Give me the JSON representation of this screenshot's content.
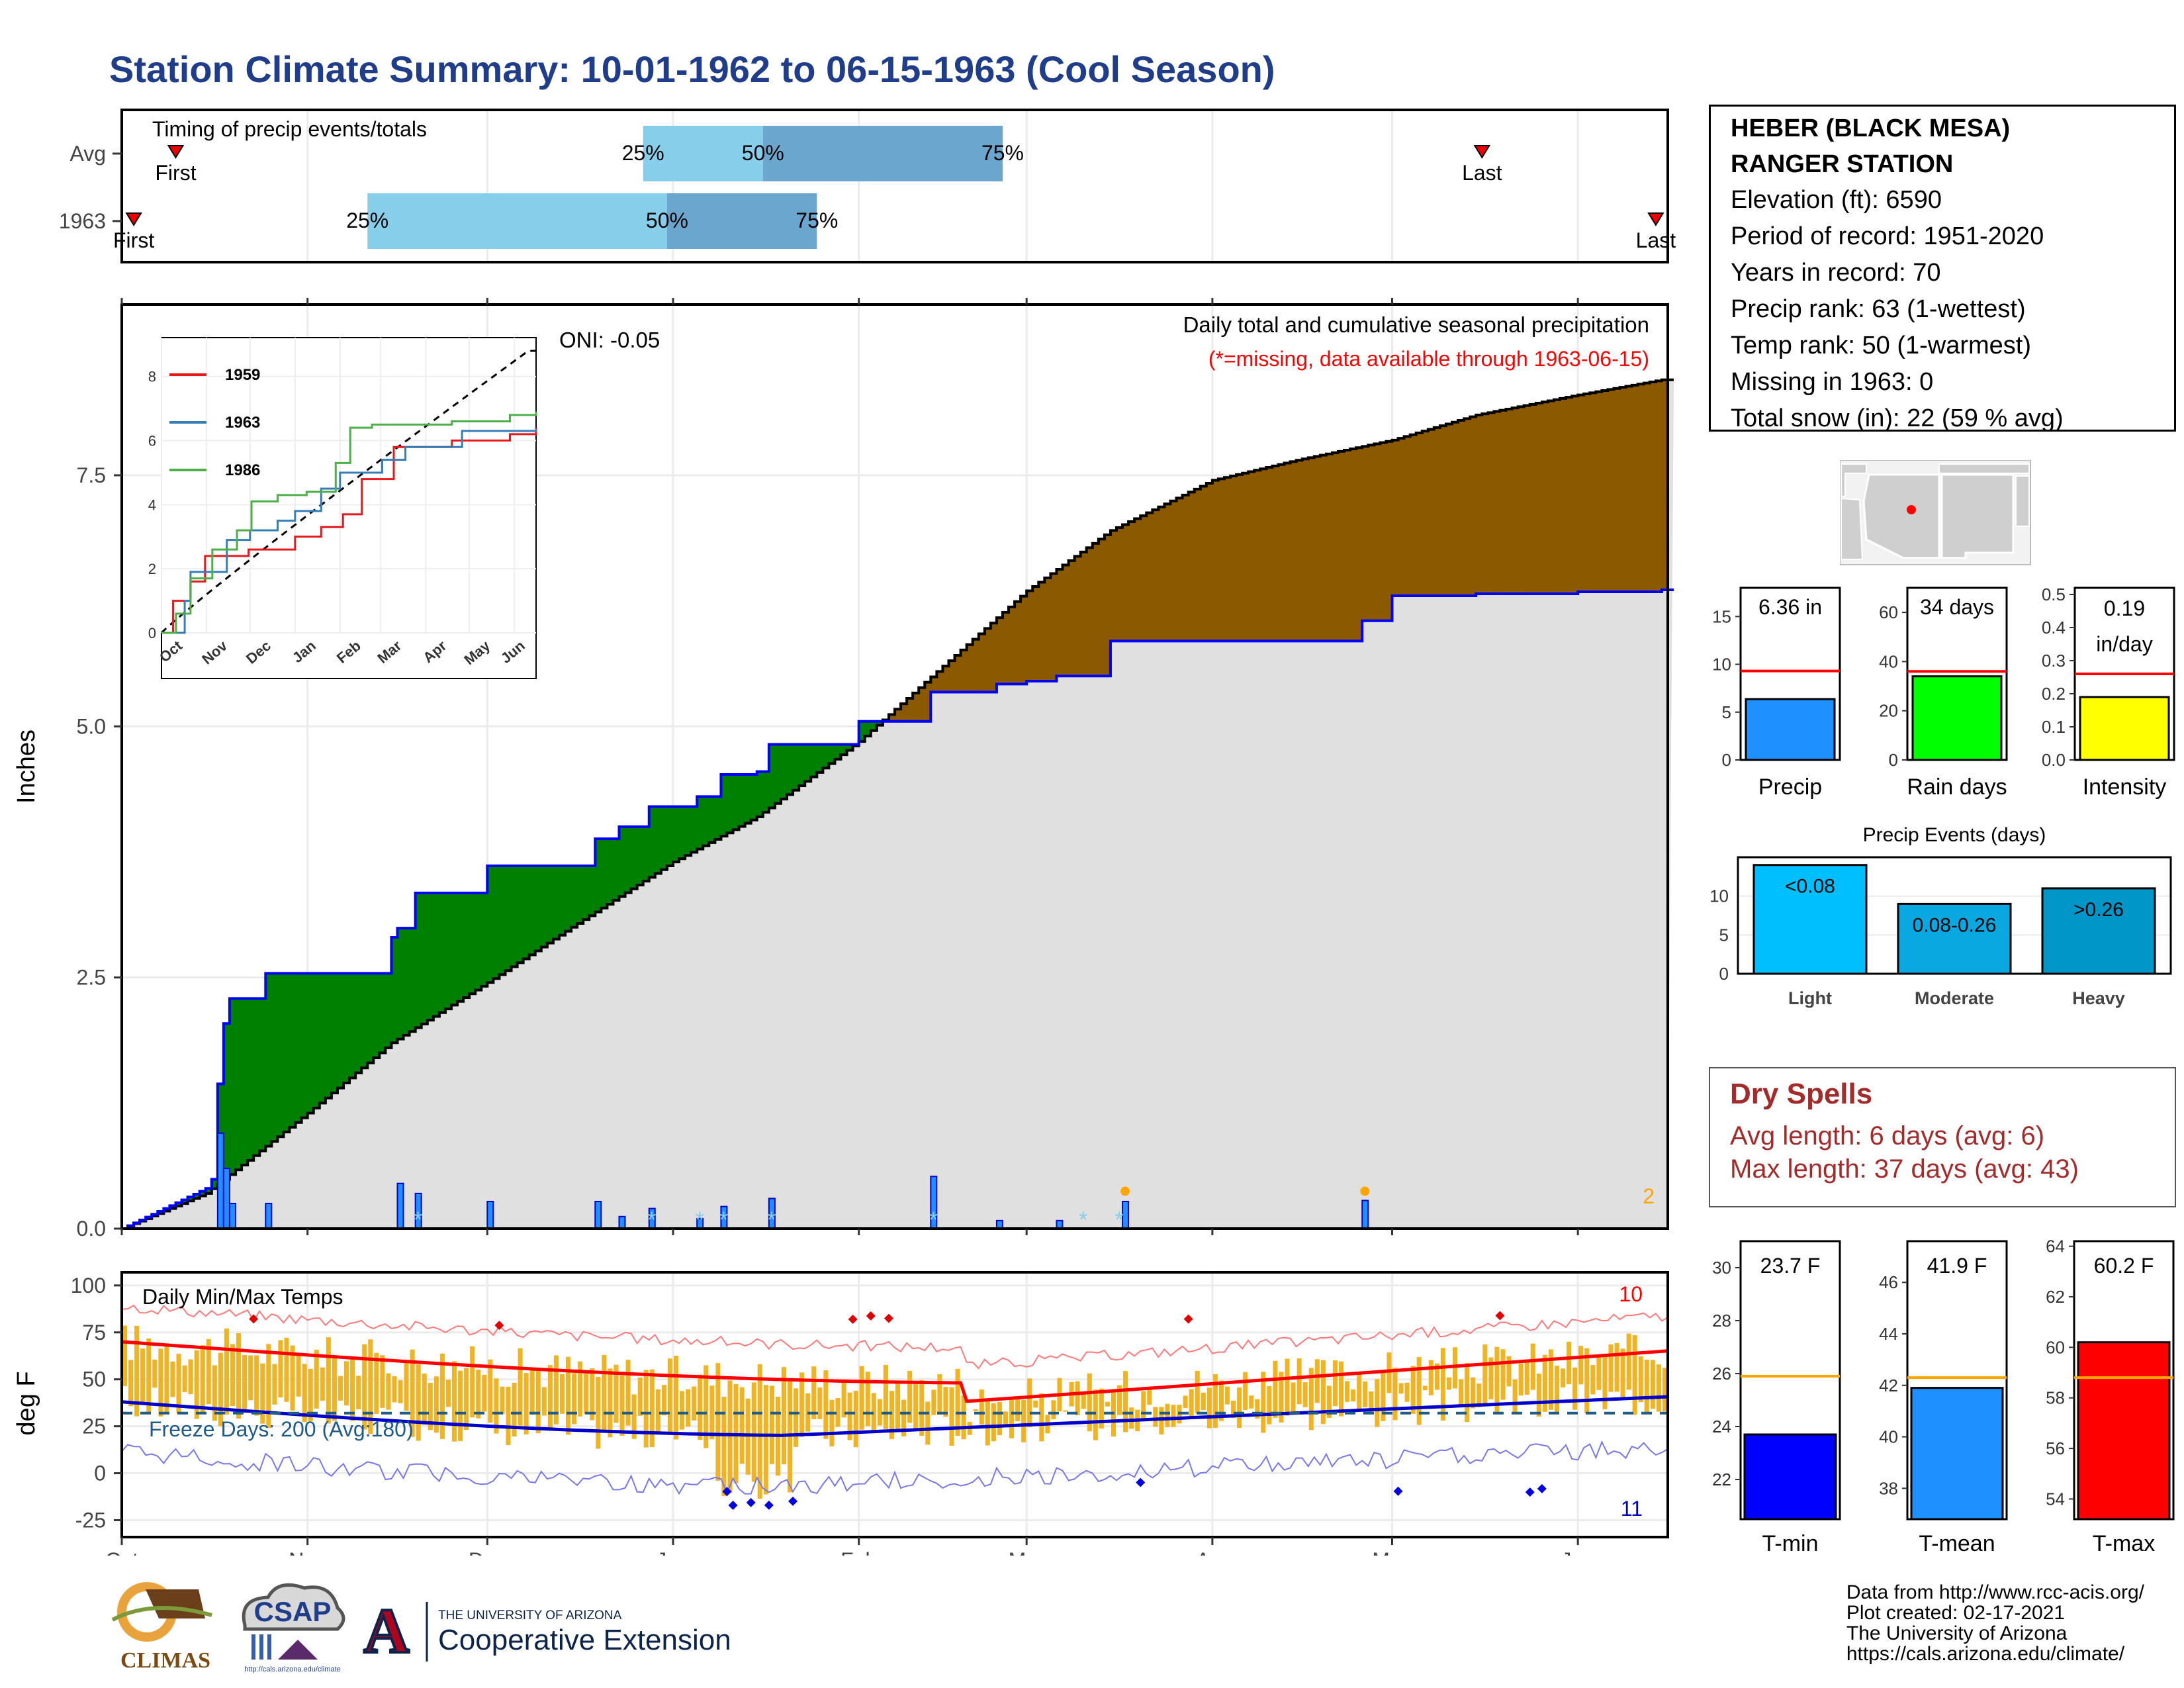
{
  "title": "Station Climate Summary: 10-01-1962 to 06-15-1963 (Cool Season)",
  "station": {
    "name_line1": "HEBER (BLACK MESA)",
    "name_line2": "RANGER STATION",
    "elevation": "Elevation (ft): 6590",
    "period": "Period of record: 1951-2020",
    "years": "Years in record: 70",
    "precip_rank": "Precip rank: 63 (1-wettest)",
    "temp_rank": "Temp rank: 50 (1-warmest)",
    "missing": "Missing in 1963: 0",
    "snow": "Total snow (in): 22 (59 % avg)"
  },
  "timing": {
    "title": "Timing of precip events/totals",
    "row_labels": [
      "Avg",
      "1963"
    ],
    "first_label": "First",
    "last_label": "Last",
    "avg": {
      "first": "1962-10-10",
      "q25": "1962-12-27",
      "q50": "1963-01-16",
      "q75": "1963-02-25",
      "last": "1963-05-16"
    },
    "y1963": {
      "first": "1962-10-03",
      "q25": "1962-11-11",
      "q50": "1962-12-31",
      "q75": "1963-01-25",
      "last": "1963-06-14"
    },
    "pct_labels": [
      "25%",
      "50%",
      "75%"
    ]
  },
  "precip_panel": {
    "ylabel": "Inches",
    "yticks": [
      "0.0",
      "2.5",
      "5.0",
      "7.5"
    ],
    "note1": "Daily total and cumulative seasonal precipitation",
    "note2": "(*=missing, data available through 1963-06-15)",
    "oni": "ONI: -0.05",
    "corner_count": "2",
    "colors": {
      "deficit": "#8B5A00",
      "surplus": "#008000",
      "avg_fill": "#E0E0E0",
      "observed": "#0000FF",
      "daily_bar": "#1E90FF"
    }
  },
  "inset": {
    "yticks": [
      "0",
      "2",
      "4",
      "6",
      "8"
    ],
    "months": [
      "Oct",
      "Nov",
      "Dec",
      "Jan",
      "Feb",
      "Mar",
      "Apr",
      "May",
      "Jun"
    ],
    "legend": [
      {
        "name": "1959",
        "color": "#E41A1C"
      },
      {
        "name": "1963",
        "color": "#377EB8"
      },
      {
        "name": "1986",
        "color": "#4DAF4A"
      }
    ]
  },
  "temp_panel": {
    "ylabel": "deg F",
    "title": "Daily Min/Max Temps",
    "yticks": [
      "100",
      "75",
      "50",
      "25",
      "0",
      "-25"
    ],
    "freeze_text": "Freeze Days: 200 (Avg:180)",
    "count_high": "10",
    "count_low": "11",
    "months": [
      "Oct",
      "Nov",
      "Dec",
      "Jan",
      "Feb",
      "Mar",
      "Apr",
      "May",
      "Jun"
    ],
    "colors": {
      "range_bar": "#F0B323",
      "avg_max": "#FF0000",
      "avg_min": "#0000CC",
      "record_max": "#FF7777",
      "record_min": "#7777EE",
      "freeze": "#1F5C8A"
    }
  },
  "precip_bars": {
    "yticks": [
      "0",
      "5",
      "10",
      "15"
    ],
    "label": "Precip",
    "value_text": "6.36 in",
    "value": 6.36,
    "avg": 9.3,
    "ymax": 18,
    "color": "#1E90FF"
  },
  "raindays_bars": {
    "yticks": [
      "0",
      "20",
      "40",
      "60"
    ],
    "label": "Rain days",
    "value_text": "34 days",
    "value": 34,
    "avg": 36,
    "ymax": 70,
    "color": "#00FF00"
  },
  "intensity_bars": {
    "yticks": [
      "0.0",
      "0.1",
      "0.2",
      "0.3",
      "0.4",
      "0.5"
    ],
    "label": "Intensity",
    "value_text_1": "0.19",
    "value_text_2": "in/day",
    "value": 0.19,
    "avg": 0.26,
    "ymax": 0.52,
    "color": "#FFFF00"
  },
  "events": {
    "title": "Precip Events (days)",
    "yticks": [
      "0",
      "5",
      "10"
    ],
    "categories": [
      "Light",
      "Moderate",
      "Heavy"
    ],
    "bar_labels": [
      "<0.08",
      "0.08-0.26",
      ">0.26"
    ],
    "values": [
      14,
      9,
      11
    ],
    "colors": [
      "#00BFFF",
      "#0AA8E0",
      "#0096C8"
    ]
  },
  "dry_spells": {
    "title": "Dry Spells",
    "avg": "Avg length: 6 days (avg: 6)",
    "max": "Max length: 37 days (avg: 43)"
  },
  "temp_bars": [
    {
      "label": "T-min",
      "value_text": "23.7 F",
      "value": 23.7,
      "avg": 25.9,
      "ymin": 20.5,
      "ymax": 31.0,
      "yticks": [
        "22",
        "24",
        "26",
        "28",
        "30"
      ],
      "color": "#0000FF"
    },
    {
      "label": "T-mean",
      "value_text": "41.9 F",
      "value": 41.9,
      "avg": 42.3,
      "ymin": 36.8,
      "ymax": 47.6,
      "yticks": [
        "38",
        "40",
        "42",
        "44",
        "46"
      ],
      "color": "#1E90FF"
    },
    {
      "label": "T-max",
      "value_text": "60.2 F",
      "value": 60.2,
      "avg": 58.8,
      "ymin": 53.2,
      "ymax": 64.2,
      "yticks": [
        "54",
        "56",
        "58",
        "60",
        "62",
        "64"
      ],
      "color": "#FF0000"
    }
  ],
  "credits": [
    "Data from http://www.rcc-acis.org/",
    "Plot created: 02-17-2021",
    "The University of Arizona",
    "https://cals.arizona.edu/climate/"
  ],
  "logos": {
    "climas": "CLIMAS",
    "csap": "CSAP",
    "csap_url": "http://cals.arizona.edu/climate",
    "ua_letter": "A",
    "ua_small": "THE UNIVERSITY OF ARIZONA",
    "ua_big": "Cooperative Extension"
  },
  "chart_data": {
    "type": "area",
    "title": "Daily total and cumulative seasonal precipitation",
    "ylabel": "Inches",
    "ylim": [
      0,
      9.2
    ],
    "x": [
      "1962-10-01",
      "1962-10-15",
      "1962-11-01",
      "1962-11-15",
      "1962-12-01",
      "1962-12-15",
      "1963-01-01",
      "1963-01-15",
      "1963-02-01",
      "1963-02-15",
      "1963-03-01",
      "1963-03-15",
      "1963-04-01",
      "1963-04-15",
      "1963-05-01",
      "1963-05-15",
      "1963-06-01",
      "1963-06-15"
    ],
    "series": [
      {
        "name": "1963",
        "values": [
          0.0,
          0.4,
          1.95,
          2.9,
          3.2,
          3.55,
          3.85,
          4.55,
          5.05,
          5.15,
          5.45,
          5.85,
          5.85,
          5.85,
          6.3,
          6.32,
          6.34,
          6.36
        ]
      },
      {
        "name": "Avg",
        "values": [
          0.0,
          0.35,
          1.15,
          1.85,
          2.45,
          3.0,
          3.65,
          4.1,
          4.85,
          5.6,
          6.35,
          6.95,
          7.45,
          7.65,
          7.85,
          8.1,
          8.3,
          8.45
        ]
      }
    ],
    "daily_precip": [
      {
        "date": "1962-10-17",
        "in": 0.95
      },
      {
        "date": "1962-10-18",
        "in": 0.6
      },
      {
        "date": "1962-10-19",
        "in": 0.25
      },
      {
        "date": "1962-10-25",
        "in": 0.25
      },
      {
        "date": "1962-11-16",
        "in": 0.45
      },
      {
        "date": "1962-11-19",
        "in": 0.35
      },
      {
        "date": "1962-12-01",
        "in": 0.27
      },
      {
        "date": "1962-12-19",
        "in": 0.27
      },
      {
        "date": "1962-12-23",
        "in": 0.12
      },
      {
        "date": "1962-12-28",
        "in": 0.2
      },
      {
        "date": "1963-01-05",
        "in": 0.1
      },
      {
        "date": "1963-01-09",
        "in": 0.22
      },
      {
        "date": "1963-01-17",
        "in": 0.3
      },
      {
        "date": "1963-02-13",
        "in": 0.52
      },
      {
        "date": "1963-02-24",
        "in": 0.08
      },
      {
        "date": "1963-03-06",
        "in": 0.08
      },
      {
        "date": "1963-03-17",
        "in": 0.27
      },
      {
        "date": "1963-04-26",
        "in": 0.28
      }
    ]
  }
}
